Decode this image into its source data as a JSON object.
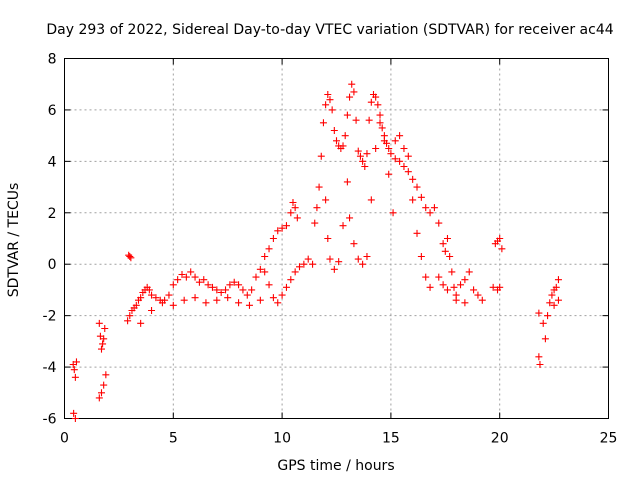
{
  "chart_data": {
    "type": "scatter",
    "title": "Day 293 of 2022, Sidereal Day-to-day VTEC variation (SDTVAR) for receiver ac44",
    "xlabel": "GPS time / hours",
    "ylabel": "SDTVAR / TECUs",
    "xlim": [
      0,
      25
    ],
    "ylim": [
      -6,
      8
    ],
    "xticks": [
      0,
      5,
      10,
      15,
      20,
      25
    ],
    "yticks": [
      -6,
      -4,
      -2,
      0,
      2,
      4,
      6,
      8
    ],
    "grid": true,
    "marker": "+",
    "series": [
      {
        "name": "SDTVAR",
        "color": "#ff0000",
        "points": [
          [
            0.4,
            -3.9
          ],
          [
            0.45,
            -4.1
          ],
          [
            0.5,
            -4.4
          ],
          [
            0.55,
            -3.8
          ],
          [
            0.42,
            -5.8
          ],
          [
            0.5,
            -6.0
          ],
          [
            1.6,
            -2.3
          ],
          [
            1.65,
            -2.8
          ],
          [
            1.7,
            -3.3
          ],
          [
            1.75,
            -3.1
          ],
          [
            1.8,
            -2.9
          ],
          [
            1.85,
            -2.5
          ],
          [
            1.6,
            -5.2
          ],
          [
            1.7,
            -5.0
          ],
          [
            1.8,
            -4.7
          ],
          [
            1.9,
            -4.3
          ],
          [
            2.95,
            0.35
          ],
          [
            3.0,
            0.3
          ],
          [
            3.05,
            0.25
          ],
          [
            2.9,
            -2.2
          ],
          [
            3.0,
            -2.0
          ],
          [
            3.1,
            -1.8
          ],
          [
            3.2,
            -1.7
          ],
          [
            3.3,
            -1.6
          ],
          [
            3.4,
            -1.4
          ],
          [
            3.5,
            -1.3
          ],
          [
            3.6,
            -1.1
          ],
          [
            3.7,
            -1.0
          ],
          [
            3.8,
            -0.9
          ],
          [
            3.9,
            -1.0
          ],
          [
            4.0,
            -1.2
          ],
          [
            4.2,
            -1.3
          ],
          [
            4.4,
            -1.4
          ],
          [
            4.6,
            -1.4
          ],
          [
            4.8,
            -1.2
          ],
          [
            5.0,
            -0.8
          ],
          [
            5.2,
            -0.6
          ],
          [
            5.4,
            -0.4
          ],
          [
            5.6,
            -0.5
          ],
          [
            5.8,
            -0.3
          ],
          [
            6.0,
            -0.5
          ],
          [
            6.2,
            -0.7
          ],
          [
            6.4,
            -0.6
          ],
          [
            6.6,
            -0.8
          ],
          [
            6.8,
            -0.9
          ],
          [
            7.0,
            -1.0
          ],
          [
            7.2,
            -1.1
          ],
          [
            7.4,
            -1.0
          ],
          [
            7.6,
            -0.8
          ],
          [
            7.8,
            -0.7
          ],
          [
            8.0,
            -0.8
          ],
          [
            8.2,
            -1.0
          ],
          [
            8.4,
            -1.2
          ],
          [
            8.6,
            -1.0
          ],
          [
            8.8,
            -0.5
          ],
          [
            9.0,
            -0.2
          ],
          [
            9.2,
            -0.3
          ],
          [
            9.4,
            -0.8
          ],
          [
            9.6,
            -1.3
          ],
          [
            9.8,
            -1.5
          ],
          [
            10.0,
            -1.2
          ],
          [
            10.2,
            -0.9
          ],
          [
            10.4,
            -0.6
          ],
          [
            10.6,
            -0.3
          ],
          [
            10.8,
            -0.1
          ],
          [
            11.0,
            0.0
          ],
          [
            11.2,
            0.2
          ],
          [
            11.4,
            0.0
          ],
          [
            3.5,
            -2.3
          ],
          [
            4.0,
            -1.8
          ],
          [
            4.5,
            -1.5
          ],
          [
            5.0,
            -1.6
          ],
          [
            5.5,
            -1.4
          ],
          [
            6.0,
            -1.3
          ],
          [
            6.5,
            -1.5
          ],
          [
            7.0,
            -1.4
          ],
          [
            7.5,
            -1.3
          ],
          [
            8.0,
            -1.5
          ],
          [
            8.5,
            -1.6
          ],
          [
            9.0,
            -1.4
          ],
          [
            9.2,
            0.3
          ],
          [
            9.4,
            0.6
          ],
          [
            9.6,
            1.0
          ],
          [
            9.8,
            1.3
          ],
          [
            10.0,
            1.4
          ],
          [
            10.2,
            1.5
          ],
          [
            10.4,
            2.0
          ],
          [
            10.5,
            2.4
          ],
          [
            10.6,
            2.2
          ],
          [
            10.7,
            1.8
          ],
          [
            11.5,
            1.6
          ],
          [
            11.6,
            2.2
          ],
          [
            11.7,
            3.0
          ],
          [
            11.8,
            4.2
          ],
          [
            11.9,
            5.5
          ],
          [
            12.0,
            6.2
          ],
          [
            12.1,
            6.6
          ],
          [
            12.2,
            6.4
          ],
          [
            12.3,
            6.0
          ],
          [
            12.4,
            5.2
          ],
          [
            12.5,
            4.8
          ],
          [
            12.6,
            4.6
          ],
          [
            12.7,
            4.5
          ],
          [
            12.8,
            4.6
          ],
          [
            12.9,
            5.0
          ],
          [
            13.0,
            5.8
          ],
          [
            13.1,
            6.5
          ],
          [
            13.2,
            7.0
          ],
          [
            13.3,
            6.7
          ],
          [
            13.4,
            5.6
          ],
          [
            13.5,
            4.4
          ],
          [
            13.6,
            4.2
          ],
          [
            13.7,
            4.0
          ],
          [
            13.8,
            3.8
          ],
          [
            13.9,
            4.3
          ],
          [
            14.0,
            5.6
          ],
          [
            14.1,
            6.3
          ],
          [
            14.2,
            6.6
          ],
          [
            14.3,
            6.5
          ],
          [
            14.4,
            6.2
          ],
          [
            14.5,
            5.8
          ],
          [
            14.6,
            5.3
          ],
          [
            14.7,
            5.0
          ],
          [
            14.8,
            4.7
          ],
          [
            14.9,
            4.5
          ],
          [
            15.0,
            4.3
          ],
          [
            15.2,
            4.1
          ],
          [
            15.4,
            4.0
          ],
          [
            15.6,
            3.8
          ],
          [
            15.8,
            3.6
          ],
          [
            16.0,
            3.3
          ],
          [
            16.2,
            3.0
          ],
          [
            16.4,
            2.6
          ],
          [
            16.6,
            2.2
          ],
          [
            16.8,
            2.0
          ],
          [
            17.0,
            2.2
          ],
          [
            17.2,
            1.6
          ],
          [
            17.4,
            0.8
          ],
          [
            12.0,
            2.5
          ],
          [
            12.1,
            1.0
          ],
          [
            12.2,
            0.2
          ],
          [
            12.4,
            -0.2
          ],
          [
            12.6,
            0.1
          ],
          [
            12.8,
            1.5
          ],
          [
            13.0,
            3.2
          ],
          [
            13.1,
            1.8
          ],
          [
            13.3,
            0.8
          ],
          [
            13.5,
            0.2
          ],
          [
            13.7,
            0.0
          ],
          [
            13.9,
            0.3
          ],
          [
            14.1,
            2.5
          ],
          [
            14.3,
            4.5
          ],
          [
            14.5,
            5.5
          ],
          [
            14.7,
            4.8
          ],
          [
            14.9,
            3.5
          ],
          [
            15.1,
            2.0
          ],
          [
            15.2,
            4.8
          ],
          [
            15.4,
            5.0
          ],
          [
            15.6,
            4.5
          ],
          [
            15.8,
            4.2
          ],
          [
            16.0,
            2.5
          ],
          [
            16.2,
            1.2
          ],
          [
            16.4,
            0.3
          ],
          [
            16.6,
            -0.5
          ],
          [
            16.8,
            -0.9
          ],
          [
            17.5,
            0.5
          ],
          [
            17.6,
            1.0
          ],
          [
            17.7,
            0.3
          ],
          [
            17.8,
            -0.3
          ],
          [
            17.9,
            -0.9
          ],
          [
            18.0,
            -1.2
          ],
          [
            18.2,
            -0.8
          ],
          [
            18.4,
            -0.6
          ],
          [
            18.6,
            -0.3
          ],
          [
            18.8,
            -1.0
          ],
          [
            19.0,
            -1.2
          ],
          [
            19.2,
            -1.4
          ],
          [
            17.2,
            -0.5
          ],
          [
            17.4,
            -0.8
          ],
          [
            17.6,
            -1.0
          ],
          [
            18.0,
            -1.4
          ],
          [
            18.4,
            -1.5
          ],
          [
            19.8,
            0.8
          ],
          [
            19.9,
            0.9
          ],
          [
            20.0,
            1.0
          ],
          [
            20.1,
            0.6
          ],
          [
            19.7,
            -0.9
          ],
          [
            19.9,
            -1.0
          ],
          [
            20.0,
            -0.9
          ],
          [
            21.8,
            -3.6
          ],
          [
            21.85,
            -3.9
          ],
          [
            21.8,
            -1.9
          ],
          [
            22.0,
            -2.3
          ],
          [
            22.1,
            -2.9
          ],
          [
            22.2,
            -2.0
          ],
          [
            22.3,
            -1.5
          ],
          [
            22.4,
            -1.2
          ],
          [
            22.5,
            -1.0
          ],
          [
            22.6,
            -0.9
          ],
          [
            22.7,
            -0.6
          ],
          [
            22.5,
            -1.6
          ],
          [
            22.7,
            -1.4
          ]
        ]
      }
    ]
  }
}
